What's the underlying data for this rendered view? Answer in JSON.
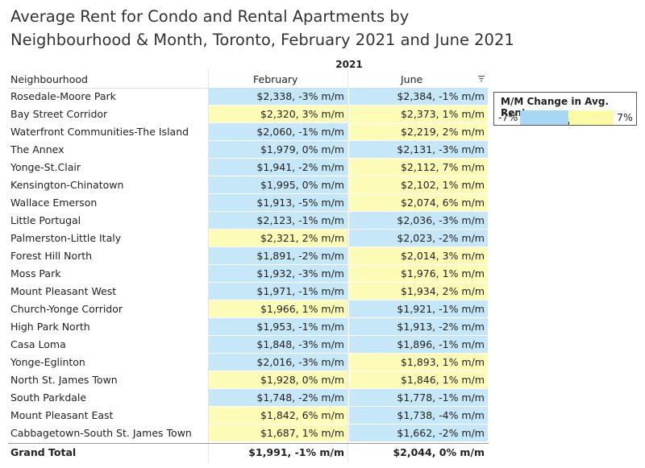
{
  "chart_data": {
    "type": "table",
    "title_line1": "Average Rent for Condo and Rental Apartments by",
    "title_line2": "Neighbourhood & Month, Toronto, February 2021 and June 2021",
    "year": "2021",
    "row_header": "Neighbourhood",
    "columns": [
      "February",
      "June"
    ],
    "legend": {
      "title": "M/M Change in Avg. Rent",
      "min": "-7%",
      "max": "7%"
    },
    "colors": {
      "negative": "#c6e7f7",
      "positive": "#fdfcb6"
    },
    "rows": [
      {
        "name": "Rosedale-Moore Park",
        "feb": "$2,338, -3% m/m",
        "feb_change": -3,
        "jun": "$2,384, -1% m/m",
        "jun_change": -1
      },
      {
        "name": "Bay Street Corridor",
        "feb": "$2,320, 3% m/m",
        "feb_change": 3,
        "jun": "$2,373, 1% m/m",
        "jun_change": 1
      },
      {
        "name": "Waterfront Communities-The Island",
        "feb": "$2,060, -1% m/m",
        "feb_change": -1,
        "jun": "$2,219, 2% m/m",
        "jun_change": 2
      },
      {
        "name": "The Annex",
        "feb": "$1,979, 0% m/m",
        "feb_change": -0.1,
        "jun": "$2,131, -3% m/m",
        "jun_change": -3
      },
      {
        "name": "Yonge-St.Clair",
        "feb": "$1,941, -2% m/m",
        "feb_change": -2,
        "jun": "$2,112, 7% m/m",
        "jun_change": 7
      },
      {
        "name": "Kensington-Chinatown",
        "feb": "$1,995, 0% m/m",
        "feb_change": -0.1,
        "jun": "$2,102, 1% m/m",
        "jun_change": 1
      },
      {
        "name": "Wallace Emerson",
        "feb": "$1,913, -5% m/m",
        "feb_change": -5,
        "jun": "$2,074, 6% m/m",
        "jun_change": 6
      },
      {
        "name": "Little Portugal",
        "feb": "$2,123, -1% m/m",
        "feb_change": -1,
        "jun": "$2,036, -3% m/m",
        "jun_change": -3
      },
      {
        "name": "Palmerston-Little Italy",
        "feb": "$2,321, 2% m/m",
        "feb_change": 2,
        "jun": "$2,023, -2% m/m",
        "jun_change": -2
      },
      {
        "name": "Forest Hill North",
        "feb": "$1,891, -2% m/m",
        "feb_change": -2,
        "jun": "$2,014, 3% m/m",
        "jun_change": 3
      },
      {
        "name": "Moss Park",
        "feb": "$1,932, -3% m/m",
        "feb_change": -3,
        "jun": "$1,976, 1% m/m",
        "jun_change": 1
      },
      {
        "name": "Mount Pleasant West",
        "feb": "$1,971, -1% m/m",
        "feb_change": -1,
        "jun": "$1,934, 2% m/m",
        "jun_change": 2
      },
      {
        "name": "Church-Yonge Corridor",
        "feb": "$1,966, 1% m/m",
        "feb_change": 1,
        "jun": "$1,921, -1% m/m",
        "jun_change": -1
      },
      {
        "name": "High Park North",
        "feb": "$1,953, -1% m/m",
        "feb_change": -1,
        "jun": "$1,913, -2% m/m",
        "jun_change": -2
      },
      {
        "name": "Casa Loma",
        "feb": "$1,848, -3% m/m",
        "feb_change": -3,
        "jun": "$1,896, -1% m/m",
        "jun_change": -1
      },
      {
        "name": "Yonge-Eglinton",
        "feb": "$2,016, -3% m/m",
        "feb_change": -3,
        "jun": "$1,893, 1% m/m",
        "jun_change": 1
      },
      {
        "name": "North St. James Town",
        "feb": "$1,928, 0% m/m",
        "feb_change": 0.1,
        "jun": "$1,846, 1% m/m",
        "jun_change": 1
      },
      {
        "name": "South Parkdale",
        "feb": "$1,748, -2% m/m",
        "feb_change": -2,
        "jun": "$1,778, -1% m/m",
        "jun_change": -1
      },
      {
        "name": "Mount Pleasant East",
        "feb": "$1,842, 6% m/m",
        "feb_change": 6,
        "jun": "$1,738, -4% m/m",
        "jun_change": -4
      },
      {
        "name": "Cabbagetown-South St. James Town",
        "feb": "$1,687, 1% m/m",
        "feb_change": 1,
        "jun": "$1,662, -2% m/m",
        "jun_change": -2
      }
    ],
    "grand_total": {
      "name": "Grand Total",
      "feb": "$1,991, -1% m/m",
      "jun": "$2,044, 0% m/m"
    }
  }
}
